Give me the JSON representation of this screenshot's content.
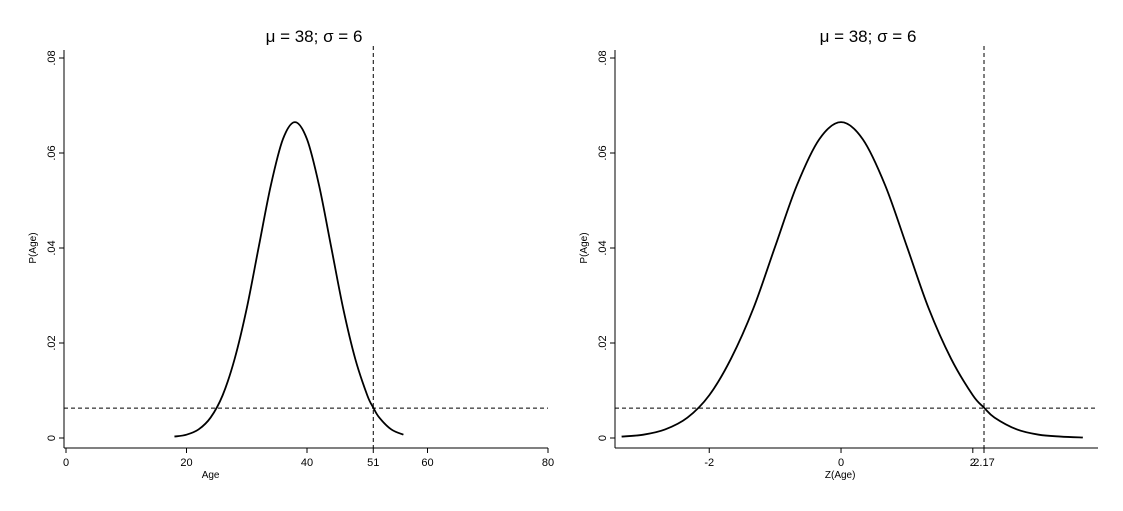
{
  "chart_data": [
    {
      "type": "line",
      "title": "μ = 38; σ = 6",
      "xlabel": "Age",
      "ylabel": "P(Age)",
      "xlim": [
        0,
        80
      ],
      "ylim": [
        0,
        0.08
      ],
      "xticks": [
        0,
        20,
        40,
        51,
        60,
        80
      ],
      "xtick_labels": [
        "0",
        "20",
        "40",
        "51",
        "60",
        "80"
      ],
      "yticks": [
        0,
        0.02,
        0.04,
        0.06,
        0.08
      ],
      "ytick_labels": [
        "0",
        ".02",
        ".04",
        ".06",
        ".08"
      ],
      "grid": false,
      "series": [
        {
          "x": [
            18,
            20,
            22,
            24,
            26,
            28,
            30,
            32,
            34,
            36,
            38,
            40,
            42,
            44,
            46,
            48,
            50,
            51,
            52,
            54,
            56
          ],
          "values": [
            0.0003,
            0.0007,
            0.0018,
            0.0043,
            0.009,
            0.0167,
            0.0273,
            0.0403,
            0.0532,
            0.0629,
            0.0665,
            0.0629,
            0.0532,
            0.0403,
            0.0273,
            0.0167,
            0.009,
            0.0064,
            0.0043,
            0.0018,
            0.0007
          ]
        }
      ],
      "reference_lines": {
        "vertical_x": 51,
        "horizontal_y": 0.0063,
        "style": "dashed"
      }
    },
    {
      "type": "line",
      "title": "μ = 38; σ = 6",
      "xlabel": "Z(Age)",
      "ylabel": "P(Age)",
      "xlim": [
        -3.4,
        3.9
      ],
      "ylim": [
        0,
        0.08
      ],
      "xticks": [
        -2,
        0,
        2,
        2.17
      ],
      "xtick_labels": [
        "-2",
        "0",
        "2",
        "2.17"
      ],
      "yticks": [
        0,
        0.02,
        0.04,
        0.06,
        0.08
      ],
      "ytick_labels": [
        "0",
        ".02",
        ".04",
        ".06",
        ".08"
      ],
      "grid": false,
      "series": [
        {
          "x": [
            -3.33,
            -3.0,
            -2.67,
            -2.33,
            -2.0,
            -1.67,
            -1.33,
            -1.0,
            -0.67,
            -0.33,
            0,
            0.33,
            0.67,
            1.0,
            1.33,
            1.67,
            2.0,
            2.17,
            2.33,
            2.67,
            3.0,
            3.33,
            3.67
          ],
          "values": [
            0.0003,
            0.0007,
            0.0018,
            0.0043,
            0.009,
            0.0167,
            0.0273,
            0.0403,
            0.0532,
            0.0629,
            0.0665,
            0.0629,
            0.0532,
            0.0403,
            0.0273,
            0.0167,
            0.009,
            0.0064,
            0.0043,
            0.0018,
            0.0007,
            0.0003,
            0.0001
          ]
        }
      ],
      "reference_lines": {
        "vertical_x": 2.17,
        "horizontal_y": 0.0063,
        "style": "dashed"
      }
    }
  ]
}
